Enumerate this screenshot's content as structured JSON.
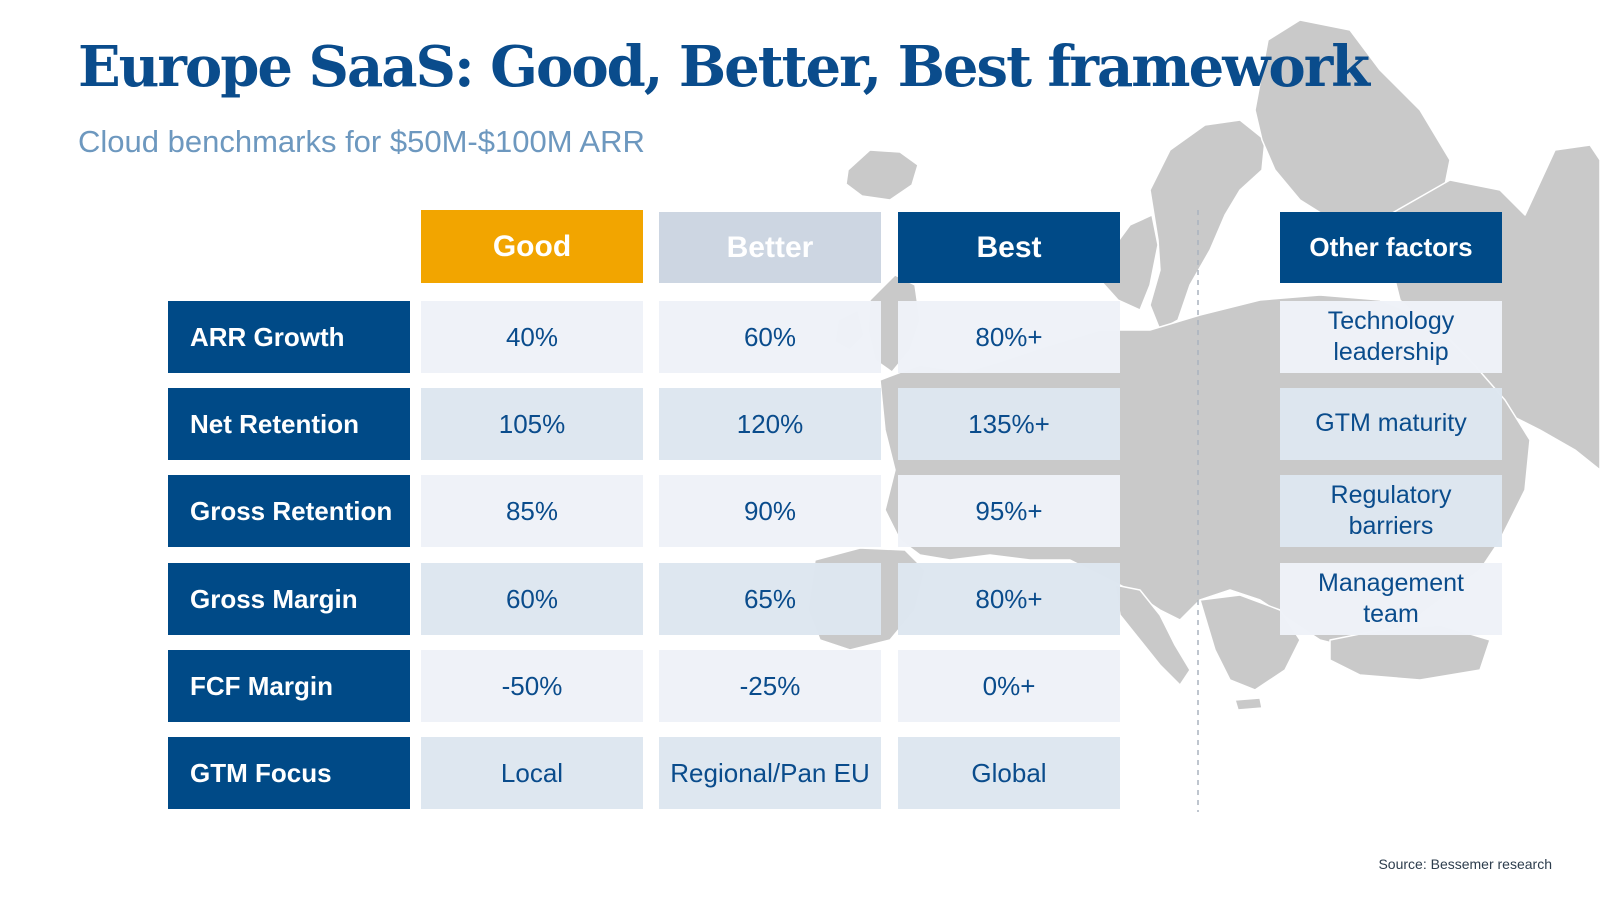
{
  "title": "Europe SaaS: Good, Better, Best framework",
  "subtitle": "Cloud benchmarks for $50M-$100M ARR",
  "columns": {
    "good": "Good",
    "better": "Better",
    "best": "Best",
    "other": "Other factors"
  },
  "colors": {
    "good": "#f2a500",
    "better": "#cdd6e2",
    "best": "#004a87",
    "title": "#0a4c8c",
    "subtitle": "#6d98bf",
    "map": "#c9c9c9"
  },
  "rows": [
    {
      "label": "ARR Growth",
      "good": "40%",
      "better": "60%",
      "best": "80%+"
    },
    {
      "label": "Net Retention",
      "good": "105%",
      "better": "120%",
      "best": "135%+"
    },
    {
      "label": "Gross Retention",
      "good": "85%",
      "better": "90%",
      "best": "95%+"
    },
    {
      "label": "Gross Margin",
      "good": "60%",
      "better": "65%",
      "best": "80%+"
    },
    {
      "label": "FCF Margin",
      "good": "-50%",
      "better": "-25%",
      "best": "0%+"
    },
    {
      "label": "GTM Focus",
      "good": "Local",
      "better": "Regional/Pan EU",
      "best": "Global"
    }
  ],
  "other_factors": [
    "Technology leadership",
    "GTM maturity",
    "Regulatory barriers",
    "Management team"
  ],
  "source": "Source: Bessemer research",
  "background": "europe-map"
}
